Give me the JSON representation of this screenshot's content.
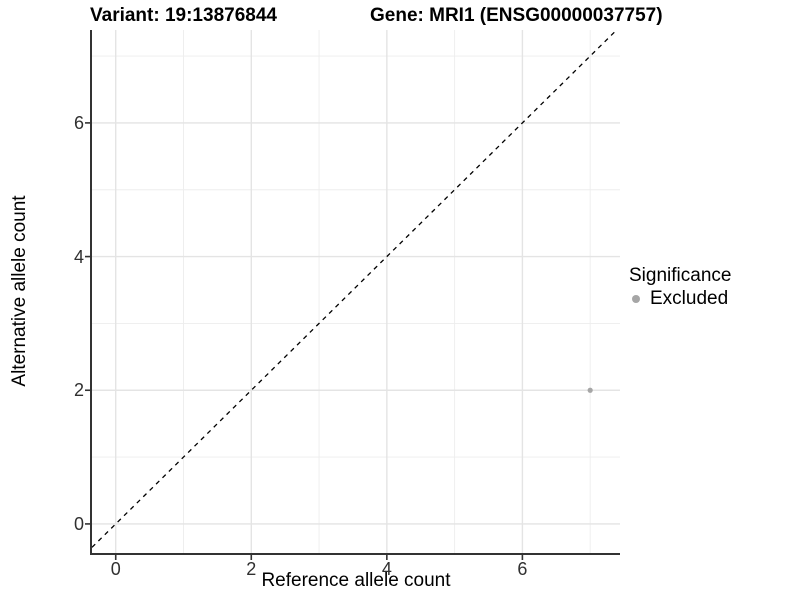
{
  "titles": {
    "left": "Variant: 19:13876844",
    "right": "Gene: MRI1 (ENSG00000037757)"
  },
  "chart_data": {
    "type": "scatter",
    "xlabel": "Reference allele count",
    "ylabel": "Alternative allele count",
    "xlim": [
      -0.35,
      7.44
    ],
    "ylim": [
      -0.45,
      7.39
    ],
    "x_ticks": [
      0,
      2,
      4,
      6
    ],
    "y_ticks": [
      0,
      2,
      4,
      6
    ],
    "x_minor_gridlines": [
      1,
      3,
      5,
      7
    ],
    "y_minor_gridlines": [
      1,
      3,
      5,
      7
    ],
    "grid": true,
    "reference_line": {
      "kind": "identity",
      "style": "dashed",
      "color": "#000000"
    },
    "series": [
      {
        "name": "Excluded",
        "color": "#a6a6a6",
        "points": [
          {
            "x": 7,
            "y": 2
          }
        ]
      }
    ],
    "legend": {
      "title": "Significance",
      "position": "right",
      "items": [
        {
          "label": "Excluded",
          "color": "#a6a6a6"
        }
      ]
    },
    "colors": {
      "axis_line": "#333333",
      "tick_mark": "#333333",
      "major_gridline": "#e4e4e4",
      "minor_gridline": "#ededed",
      "tick_text": "#303030",
      "background": "#ffffff"
    }
  }
}
